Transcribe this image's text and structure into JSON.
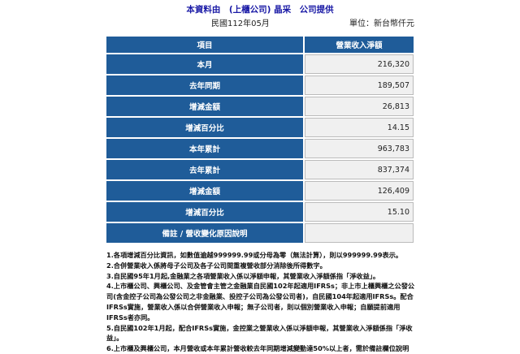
{
  "header": {
    "title": "本資料由　(上櫃公司) 晶采　公司提供",
    "period": "民國112年05月",
    "unit": "單位：新台幣仟元"
  },
  "table": {
    "columns": [
      "項目",
      "營業收入淨額"
    ],
    "rows": [
      {
        "label": "本月",
        "value": "216,320"
      },
      {
        "label": "去年同期",
        "value": "189,507"
      },
      {
        "label": "增減金額",
        "value": "26,813"
      },
      {
        "label": "增減百分比",
        "value": "14.15"
      },
      {
        "label": "本年累計",
        "value": "963,783"
      },
      {
        "label": "去年累計",
        "value": "837,374"
      },
      {
        "label": "增減金額",
        "value": "126,409"
      },
      {
        "label": "增減百分比",
        "value": "15.10"
      },
      {
        "label": "備註 / 營收變化原因說明",
        "value": ""
      }
    ]
  },
  "notes": [
    "1.各項增減百分比資訊，如數值逾越999999.99或分母為零（無法計算），則以999999.99表示。",
    "2.合併營業收入係將母子公司及各子公司間重複營收部分消除後所得數字。",
    "3.自民國95年1月起,金融業之各項營業收入係以淨額申報，其營業收入淨額係指「淨收益」。",
    "4.上市櫃公司、興櫃公司、及金管會主管之金融業自民國102年起適用IFRSs；非上市上櫃興櫃之公發公司(含金控子公司為公發公司之非金融業、投控子公司為公發公司者)，自民國104年起適用IFRSs。配合IFRSs實施，營業收入係以合併營業收入申報；無子公司者，則以個別營業收入申報；自願提前適用IFRSs者亦同。",
    "5.自民國102年1月起，配合IFRSs實施，金控業之營業收入係以淨額申報，其營業收入淨額係指「淨收益」。",
    "6.上市櫃及興櫃公司，本月營收或本年累計營收較去年同期增減變動達50%以上者，需於備註欄位說明"
  ]
}
